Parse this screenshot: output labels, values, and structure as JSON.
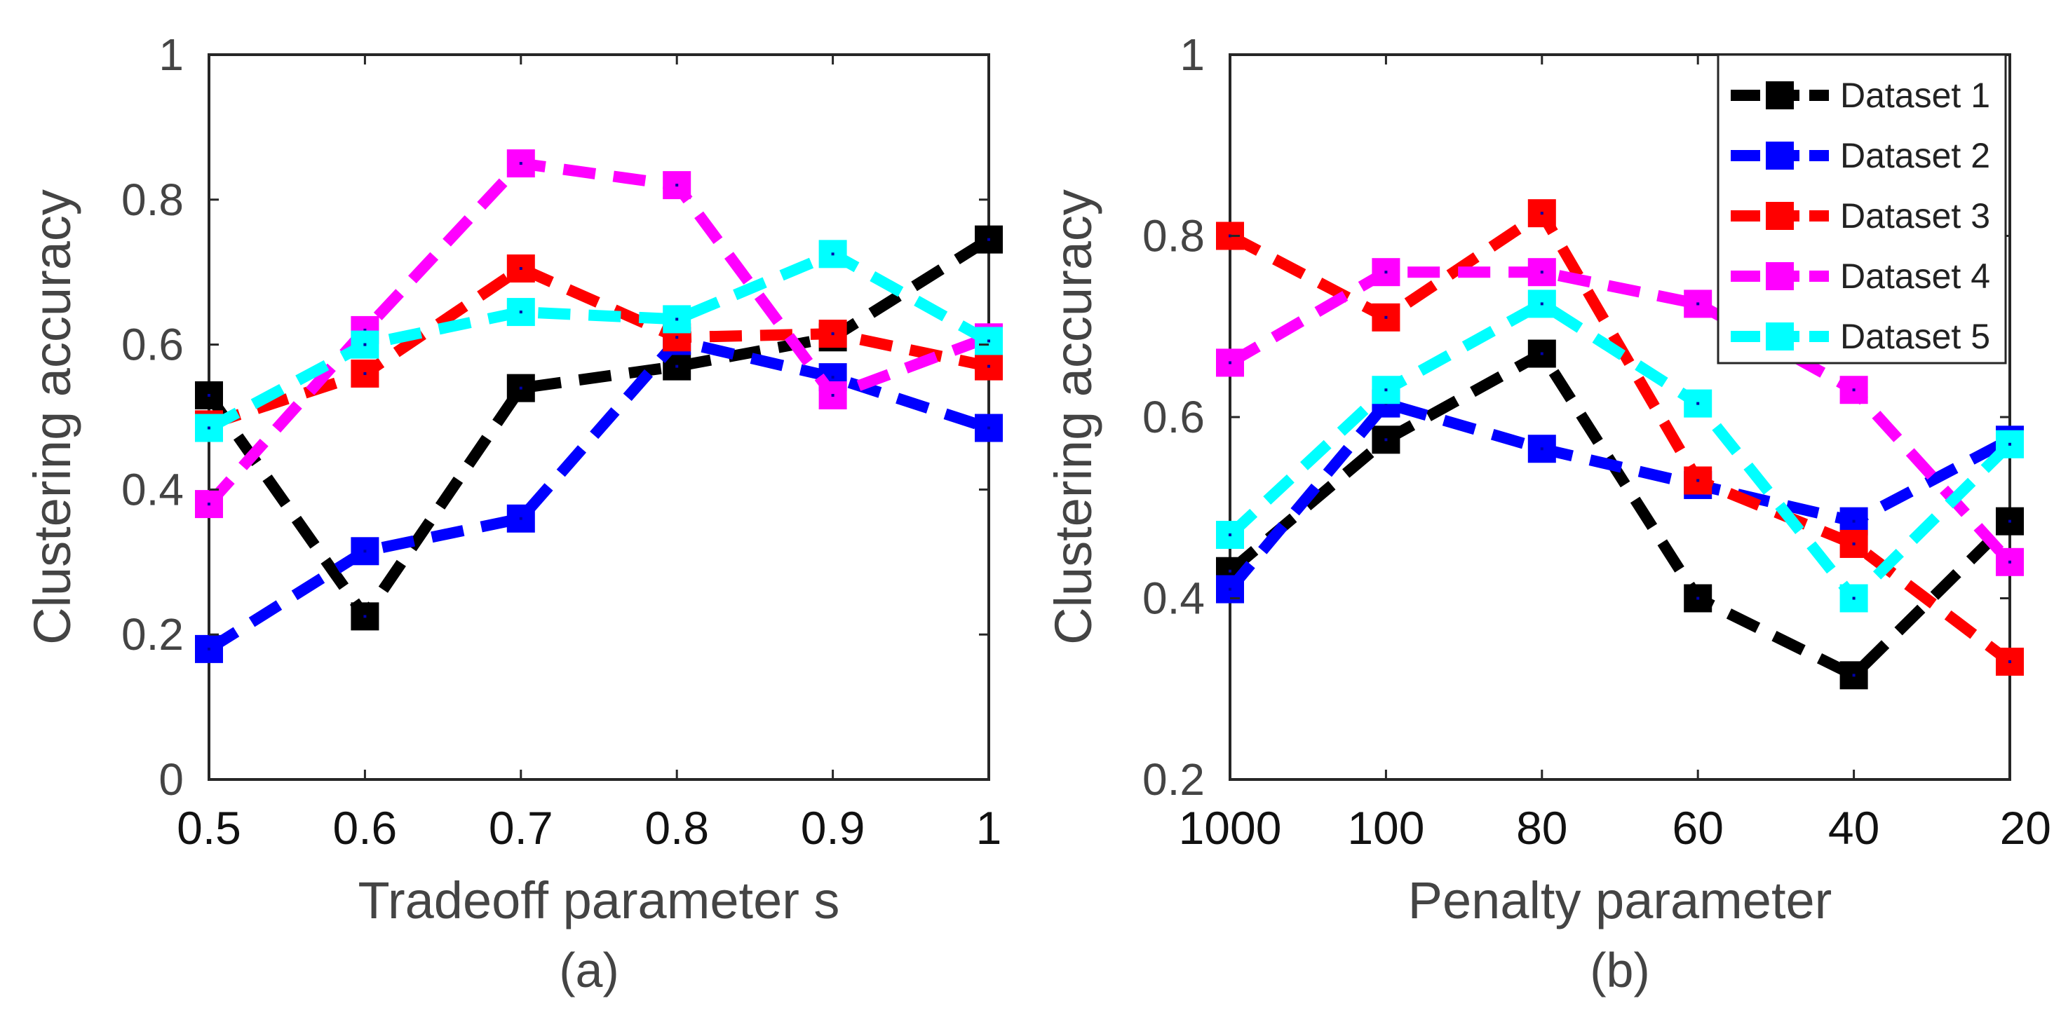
{
  "colors": {
    "Dataset 1": "#000000",
    "Dataset 2": "#0000ff",
    "Dataset 3": "#ff0000",
    "Dataset 4": "#ff00ff",
    "Dataset 5": "#00ffff"
  },
  "chart_data": [
    {
      "type": "line",
      "title": "",
      "caption": "(a)",
      "xlabel": "Tradeoff parameter s",
      "ylabel": "Clustering accuracy",
      "categories": [
        "0.5",
        "0.6",
        "0.7",
        "0.8",
        "0.9",
        "1"
      ],
      "ylim": [
        0,
        1
      ],
      "yticks": [
        "0",
        "0.2",
        "0.4",
        "0.6",
        "0.8",
        "1"
      ],
      "ytick_values": [
        0,
        0.2,
        0.4,
        0.6,
        0.8,
        1
      ],
      "legend": false,
      "series": [
        {
          "name": "Dataset 1",
          "values": [
            0.53,
            0.225,
            0.54,
            0.57,
            0.61,
            0.745
          ]
        },
        {
          "name": "Dataset 2",
          "values": [
            0.18,
            0.315,
            0.36,
            0.605,
            0.555,
            0.485
          ]
        },
        {
          "name": "Dataset 3",
          "values": [
            0.49,
            0.56,
            0.705,
            0.61,
            0.615,
            0.57
          ]
        },
        {
          "name": "Dataset 4",
          "values": [
            0.38,
            0.62,
            0.85,
            0.82,
            0.53,
            0.61
          ]
        },
        {
          "name": "Dataset 5",
          "values": [
            0.485,
            0.6,
            0.645,
            0.635,
            0.725,
            0.605
          ]
        }
      ]
    },
    {
      "type": "line",
      "title": "",
      "caption": "(b)",
      "xlabel": "Penalty parameter",
      "ylabel": "Clustering accuracy",
      "categories": [
        "1000",
        "100",
        "80",
        "60",
        "40",
        "20"
      ],
      "ylim": [
        0.2,
        1
      ],
      "yticks": [
        "0.2",
        "0.4",
        "0.6",
        "0.8",
        "1"
      ],
      "ytick_values": [
        0.2,
        0.4,
        0.6,
        0.8,
        1
      ],
      "legend": true,
      "legend_position": "top-right",
      "series": [
        {
          "name": "Dataset 1",
          "values": [
            0.43,
            0.575,
            0.67,
            0.4,
            0.315,
            0.485
          ]
        },
        {
          "name": "Dataset 2",
          "values": [
            0.41,
            0.615,
            0.565,
            0.525,
            0.485,
            0.575
          ]
        },
        {
          "name": "Dataset 3",
          "values": [
            0.8,
            0.71,
            0.825,
            0.53,
            0.46,
            0.33
          ]
        },
        {
          "name": "Dataset 4",
          "values": [
            0.66,
            0.76,
            0.76,
            0.725,
            0.63,
            0.44
          ]
        },
        {
          "name": "Dataset 5",
          "values": [
            0.47,
            0.63,
            0.725,
            0.615,
            0.4,
            0.57
          ]
        }
      ]
    }
  ]
}
